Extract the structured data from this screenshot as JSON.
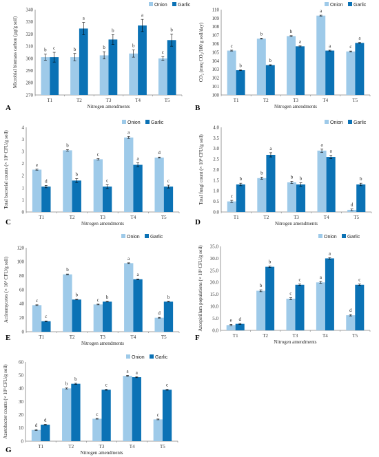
{
  "legend": {
    "onion": "Onion",
    "garlic": "Garlic"
  },
  "colors": {
    "onion": "#9ECAE9",
    "garlic": "#0B72B5",
    "axis": "#808080",
    "errorbar": "#000000"
  },
  "chart_data": [
    {
      "panel": "A",
      "type": "bar",
      "categories": [
        "T1",
        "T2",
        "T3",
        "T4",
        "T5"
      ],
      "ylabel": "Microbial biomass carbon (µg/g soil)",
      "xlabel": "Nitrogen amendments",
      "ylim": [
        270,
        340
      ],
      "ticks": [
        270,
        280,
        290,
        300,
        310,
        320,
        330,
        340
      ],
      "series": [
        {
          "name": "Onion",
          "values": [
            301,
            301,
            302.5,
            304,
            300
          ],
          "errors": [
            2.5,
            3,
            3,
            3,
            1.5
          ],
          "letters": [
            "b",
            "b",
            "b",
            "b",
            "c"
          ]
        },
        {
          "name": "Garlic",
          "values": [
            301,
            324.5,
            315.5,
            327,
            315
          ],
          "errors": [
            4,
            5,
            4,
            5,
            5
          ],
          "letters": [
            "c",
            "a",
            "b",
            "a",
            "b"
          ]
        }
      ]
    },
    {
      "panel": "B",
      "type": "bar",
      "categories": [
        "T1",
        "T2",
        "T3",
        "T4",
        "T5"
      ],
      "ylabel": "CO₂ (meq CO₂/100 g soil/day)",
      "xlabel": "Nitrogen amendments",
      "ylim": [
        100,
        110
      ],
      "ticks": [
        100,
        101,
        102,
        103,
        104,
        105,
        106,
        107,
        108,
        109,
        110
      ],
      "series": [
        {
          "name": "Onion",
          "values": [
            105.2,
            106.6,
            106.9,
            109.3,
            105.1
          ],
          "errors": [
            0.05,
            0.05,
            0.05,
            0.05,
            0.05
          ],
          "letters": [
            "c",
            "b",
            "b",
            "a",
            "c"
          ]
        },
        {
          "name": "Garlic",
          "values": [
            102.9,
            103.5,
            105.7,
            105.2,
            106.1
          ],
          "errors": [
            0.05,
            0.05,
            0.05,
            0.05,
            0.05
          ],
          "letters": [
            "b",
            "b",
            "a",
            "a",
            "a"
          ]
        }
      ]
    },
    {
      "panel": "C",
      "type": "bar",
      "categories": [
        "T1",
        "T2",
        "T3",
        "T4",
        "T5"
      ],
      "ylabel": "Total bacterial counts (× 10⁶ CFU/g soil)",
      "xlabel": "Nitrogen amendments",
      "ylim": [
        0,
        3.5
      ],
      "ticks": [
        0,
        0.5,
        1,
        1.5,
        2,
        2.5,
        3,
        3.5
      ],
      "tick_labels": [
        "0",
        "1",
        "1",
        "2",
        "2",
        "3",
        "3",
        "4"
      ],
      "series": [
        {
          "name": "Onion",
          "values": [
            1.75,
            2.55,
            2.18,
            3.08,
            2.25
          ],
          "errors": [
            0.02,
            0.03,
            0.03,
            0.04,
            0.02
          ],
          "letters": [
            "e",
            "b",
            "c",
            "a",
            "d"
          ]
        },
        {
          "name": "Garlic",
          "values": [
            1.05,
            1.3,
            1.05,
            1.95,
            1.05
          ],
          "errors": [
            0.05,
            0.08,
            0.08,
            0.08,
            0.06
          ],
          "letters": [
            "d",
            "b",
            "c",
            "a",
            "c"
          ]
        }
      ]
    },
    {
      "panel": "D",
      "type": "bar",
      "categories": [
        "T1",
        "T2",
        "T3",
        "T4",
        "T5"
      ],
      "ylabel": "Total fungi count (× 10⁴ CFU/g soil)",
      "xlabel": "Nitrogen amendments",
      "ylim": [
        0,
        4
      ],
      "ticks": [
        0,
        0.5,
        1,
        1.5,
        2,
        2.5,
        3,
        3.5,
        4
      ],
      "tick_labels": [
        "0.0",
        "0.5",
        "1.0",
        "1.5",
        "2.0",
        "2.5",
        "3.0",
        "3.5",
        "4.0"
      ],
      "series": [
        {
          "name": "Onion",
          "values": [
            0.5,
            1.6,
            1.4,
            2.9,
            0.1
          ],
          "errors": [
            0.05,
            0.05,
            0.05,
            0.08,
            0.04
          ],
          "letters": [
            "c",
            "b",
            "b",
            "a",
            "d"
          ]
        },
        {
          "name": "Garlic",
          "values": [
            1.3,
            2.7,
            1.3,
            2.6,
            1.3
          ],
          "errors": [
            0.06,
            0.1,
            0.08,
            0.08,
            0.06
          ],
          "letters": [
            "b",
            "a",
            "b",
            "a",
            "b"
          ]
        }
      ]
    },
    {
      "panel": "E",
      "type": "bar",
      "categories": [
        "T1",
        "T2",
        "T3",
        "T4",
        "T5"
      ],
      "ylabel": "Actinomycetes (× 10⁵ CFU/g soil)",
      "xlabel": "Nitrogen amendments",
      "ylim": [
        0,
        120
      ],
      "ticks": [
        0,
        20,
        40,
        60,
        80,
        100,
        120
      ],
      "series": [
        {
          "name": "Onion",
          "values": [
            38,
            82,
            39,
            98,
            20
          ],
          "errors": [
            0.5,
            0.5,
            0.5,
            0.5,
            0.5
          ],
          "letters": [
            "c",
            "b",
            "c",
            "a",
            "d"
          ]
        },
        {
          "name": "Garlic",
          "values": [
            15,
            46,
            43,
            75,
            43
          ],
          "errors": [
            0.5,
            0.5,
            0.5,
            0.5,
            0.5
          ],
          "letters": [
            "c",
            "b",
            "b",
            "a",
            "b"
          ]
        }
      ]
    },
    {
      "panel": "F",
      "type": "bar",
      "categories": [
        "T1",
        "T2",
        "T3",
        "T4",
        "T5"
      ],
      "ylabel": "Azospirillum populations (× 10³ CFU/g soil)",
      "xlabel": "Nitrogen amendments",
      "ylim": [
        0,
        35
      ],
      "ticks": [
        0,
        5,
        10,
        15,
        20,
        25,
        30,
        35
      ],
      "tick_labels": [
        "0.0",
        "5.0",
        "10.0",
        "15.0",
        "20.0",
        "25.0",
        "30.0",
        "35.0"
      ],
      "series": [
        {
          "name": "Onion",
          "values": [
            2.2,
            16.5,
            13.2,
            20,
            6.3
          ],
          "errors": [
            0.3,
            0.4,
            0.4,
            0.4,
            0.3
          ],
          "letters": [
            "e",
            "b",
            "c",
            "a",
            "d"
          ]
        },
        {
          "name": "Garlic",
          "values": [
            2.7,
            26.5,
            19,
            30,
            19
          ],
          "errors": [
            0.2,
            0.3,
            0.3,
            0.3,
            0.3
          ],
          "letters": [
            "d",
            "b",
            "c",
            "a",
            "c"
          ]
        }
      ]
    },
    {
      "panel": "G",
      "type": "bar",
      "categories": [
        "T1",
        "T2",
        "T3",
        "T4",
        "T5"
      ],
      "ylabel": "Azotobacter counts (× 10³ CFU/g soil)",
      "xlabel": "Nitrogen amendments",
      "ylim": [
        0,
        60
      ],
      "ticks": [
        0,
        10,
        20,
        30,
        40,
        50,
        60
      ],
      "series": [
        {
          "name": "Onion",
          "values": [
            8.5,
            40,
            17,
            49.5,
            16.5
          ],
          "errors": [
            0.3,
            0.4,
            0.3,
            0.4,
            0.3
          ],
          "letters": [
            "d",
            "b",
            "c",
            "a",
            "c"
          ]
        },
        {
          "name": "Garlic",
          "values": [
            12.5,
            43.5,
            39,
            48.5,
            39
          ],
          "errors": [
            0.3,
            0.4,
            0.4,
            0.4,
            0.4
          ],
          "letters": [
            "d",
            "b",
            "c",
            "a",
            "c"
          ]
        }
      ]
    }
  ]
}
